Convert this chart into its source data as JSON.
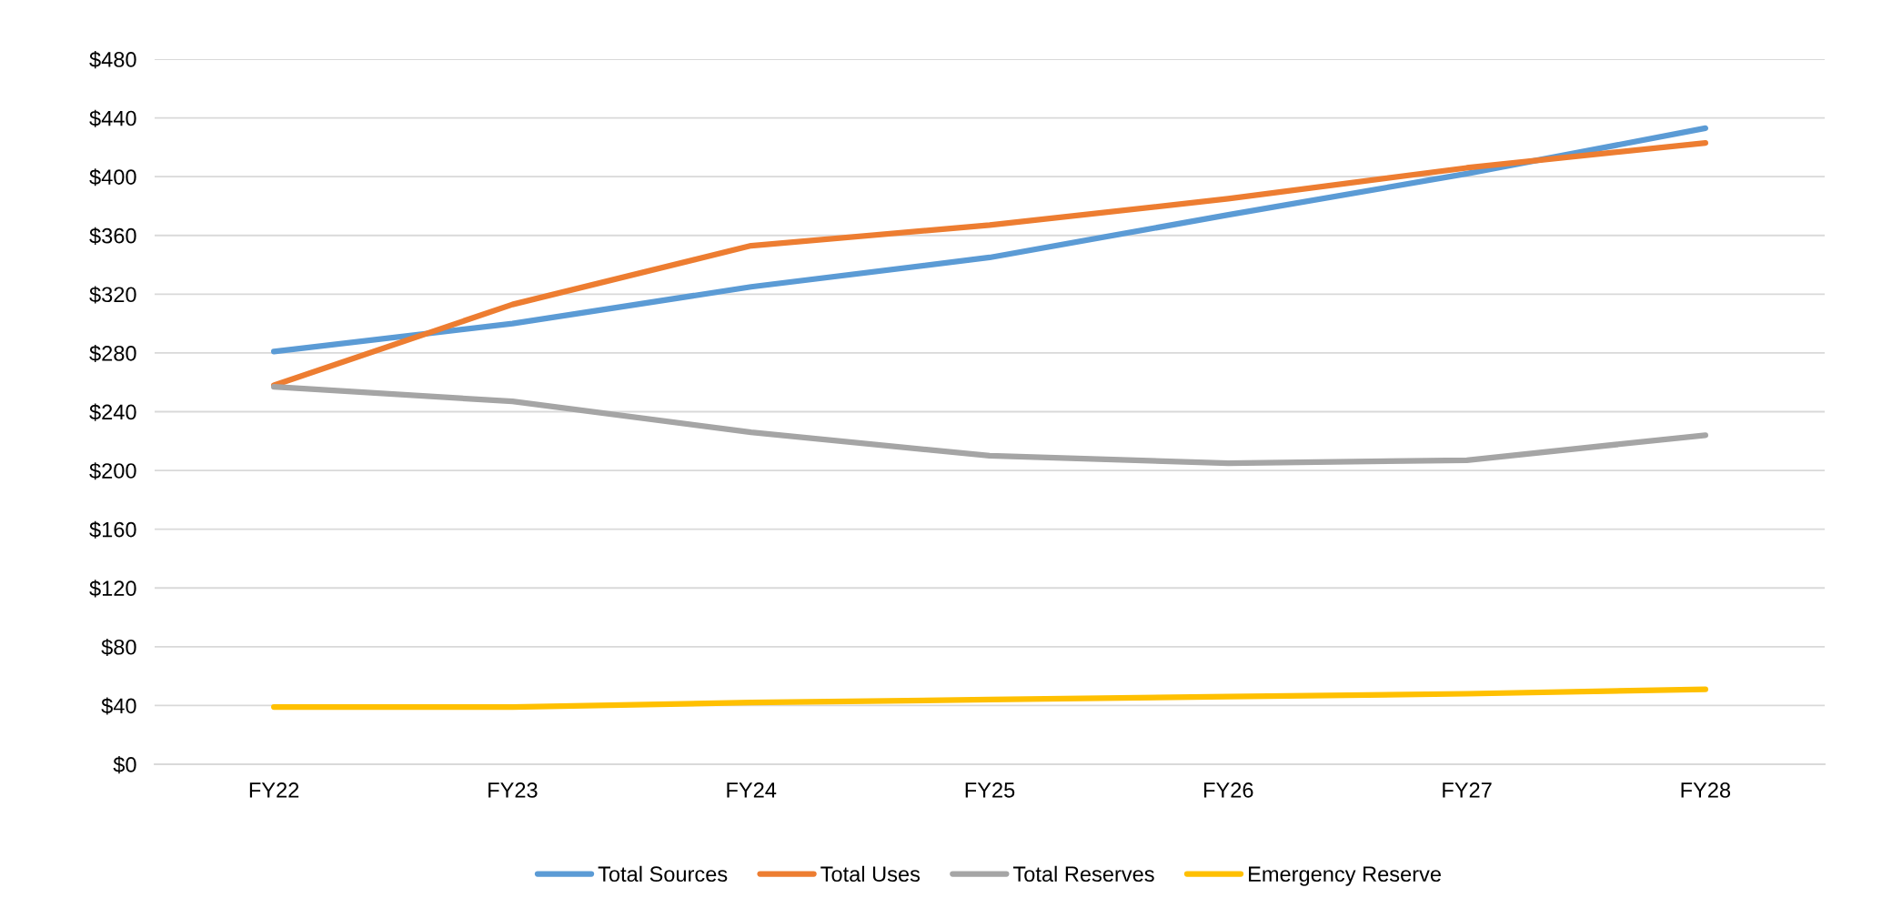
{
  "chart_data": {
    "type": "line",
    "categories": [
      "FY22",
      "FY23",
      "FY24",
      "FY25",
      "FY26",
      "FY27",
      "FY28"
    ],
    "series": [
      {
        "name": "Total Sources",
        "color": "#5b9bd5",
        "values": [
          281,
          300,
          325,
          345,
          374,
          402,
          433
        ]
      },
      {
        "name": "Total Uses",
        "color": "#ed7d31",
        "values": [
          258,
          313,
          353,
          367,
          385,
          406,
          423
        ]
      },
      {
        "name": "Total Reserves",
        "color": "#a5a5a5",
        "values": [
          257,
          247,
          226,
          210,
          205,
          207,
          224
        ]
      },
      {
        "name": "Emergency Reserve",
        "color": "#ffc000",
        "values": [
          39,
          39,
          42,
          44,
          46,
          48,
          51
        ]
      }
    ],
    "ylim": [
      0,
      480
    ],
    "yticks": [
      {
        "value": 0,
        "label": "$0"
      },
      {
        "value": 40,
        "label": "$40"
      },
      {
        "value": 80,
        "label": "$80"
      },
      {
        "value": 120,
        "label": "$120"
      },
      {
        "value": 160,
        "label": "$160"
      },
      {
        "value": 200,
        "label": "$200"
      },
      {
        "value": 240,
        "label": "$240"
      },
      {
        "value": 280,
        "label": "$280"
      },
      {
        "value": 320,
        "label": "$320"
      },
      {
        "value": 360,
        "label": "$360"
      },
      {
        "value": 400,
        "label": "$400"
      },
      {
        "value": 440,
        "label": "$440"
      },
      {
        "value": 480,
        "label": "$480"
      }
    ],
    "grid": "y",
    "legend": "bottom",
    "marker": "none",
    "line_style": "solid"
  }
}
